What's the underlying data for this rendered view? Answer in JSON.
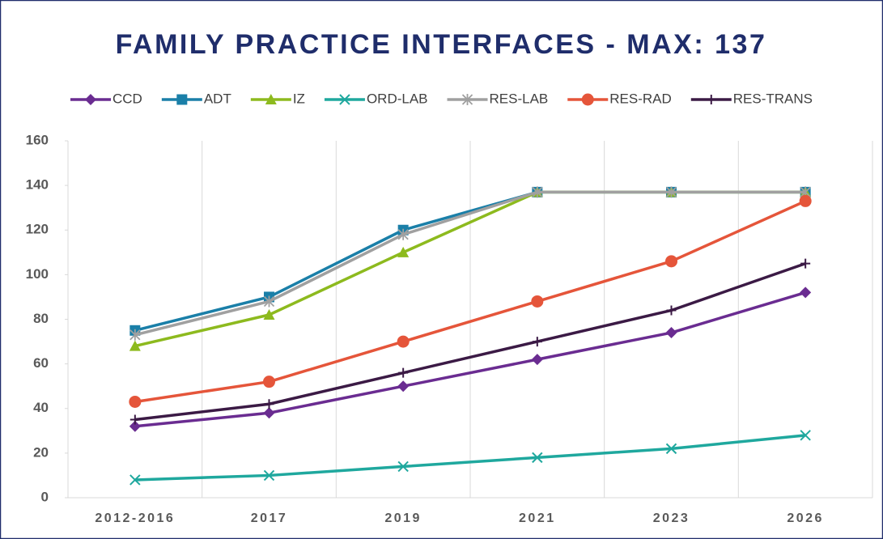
{
  "chart_data": {
    "type": "line",
    "title": "FAMILY PRACTICE INTERFACES - MAX: 137",
    "categories": [
      "2012-2016",
      "2017",
      "2019",
      "2021",
      "2023",
      "2026"
    ],
    "series": [
      {
        "name": "CCD",
        "color": "#6a2c91",
        "marker": "diamond",
        "values": [
          32,
          38,
          50,
          62,
          74,
          92
        ]
      },
      {
        "name": "ADT",
        "color": "#1a7fa8",
        "marker": "square",
        "values": [
          75,
          90,
          120,
          137,
          137,
          137
        ]
      },
      {
        "name": "IZ",
        "color": "#8dba1e",
        "marker": "triangle",
        "values": [
          68,
          82,
          110,
          137,
          137,
          137
        ]
      },
      {
        "name": "ORD-LAB",
        "color": "#1fa89e",
        "marker": "x",
        "values": [
          8,
          10,
          14,
          18,
          22,
          28
        ]
      },
      {
        "name": "RES-LAB",
        "color": "#a0a0a0",
        "marker": "star",
        "values": [
          73,
          88,
          118,
          137,
          137,
          137
        ]
      },
      {
        "name": "RES-RAD",
        "color": "#e5553a",
        "marker": "circle",
        "values": [
          43,
          52,
          70,
          88,
          106,
          133
        ]
      },
      {
        "name": "RES-TRANS",
        "color": "#3b1a45",
        "marker": "plus",
        "values": [
          35,
          42,
          56,
          70,
          84,
          105
        ]
      }
    ],
    "ylim": [
      0,
      160
    ],
    "yticks": [
      0,
      20,
      40,
      60,
      80,
      100,
      120,
      140,
      160
    ],
    "grid": "vertical",
    "legend": "top"
  }
}
